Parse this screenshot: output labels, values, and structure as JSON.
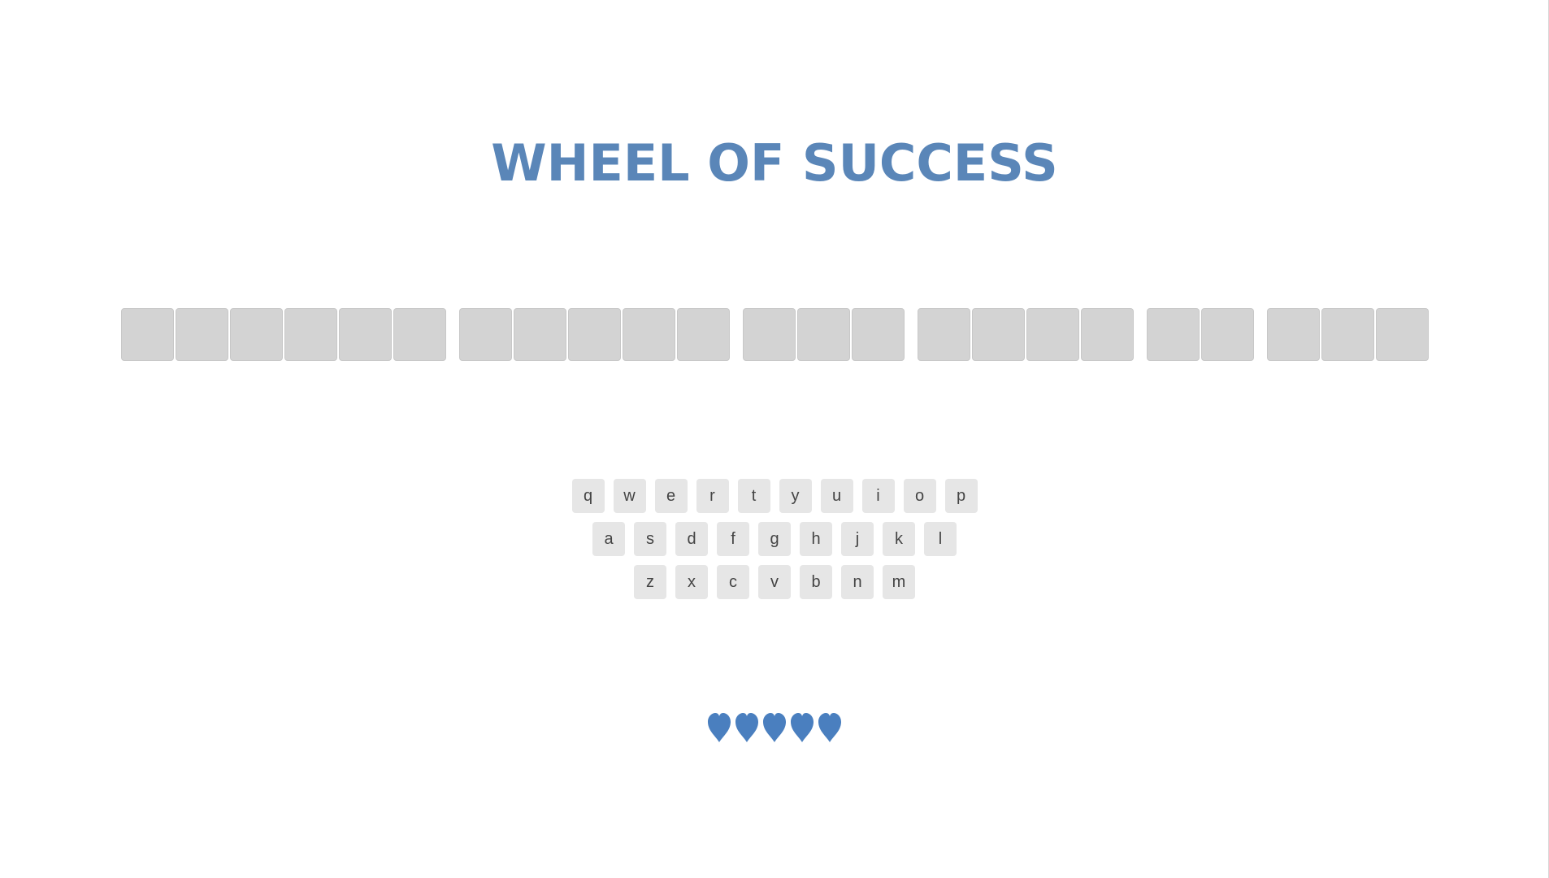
{
  "title": "WHEEL OF SUCCESS",
  "phrase": {
    "word_lengths": [
      6,
      5,
      3,
      4,
      2,
      3
    ]
  },
  "keyboard": {
    "rows": [
      [
        "q",
        "w",
        "e",
        "r",
        "t",
        "y",
        "u",
        "i",
        "o",
        "p"
      ],
      [
        "a",
        "s",
        "d",
        "f",
        "g",
        "h",
        "j",
        "k",
        "l"
      ],
      [
        "z",
        "x",
        "c",
        "v",
        "b",
        "n",
        "m"
      ]
    ]
  },
  "lives": {
    "remaining": 5,
    "icon": "heart-icon",
    "color": "#4a7fbf"
  },
  "colors": {
    "title": "#5a86b8",
    "tile": "#d3d3d3",
    "key_bg": "#e6e6e6",
    "key_text": "#444444"
  }
}
